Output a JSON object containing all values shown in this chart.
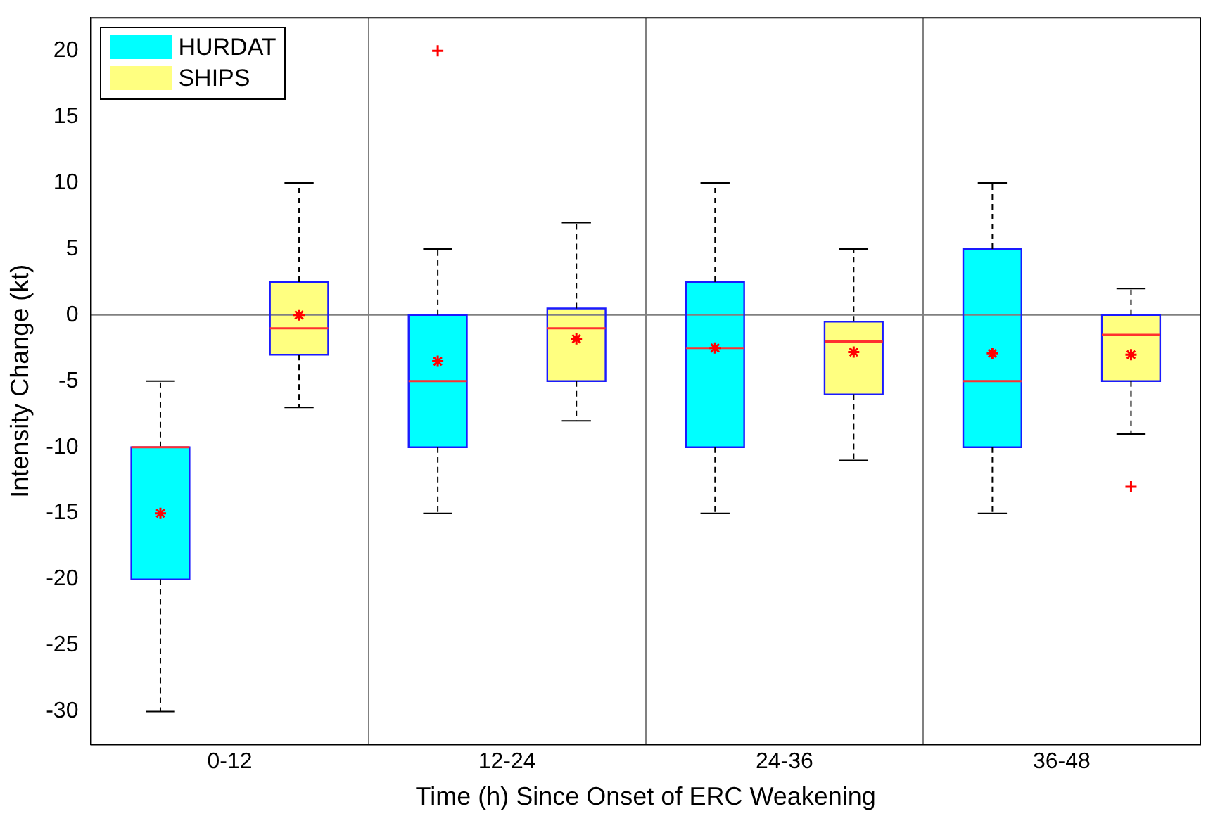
{
  "chart_data": {
    "type": "box",
    "xlabel": "Time (h) Since Onset of ERC Weakening",
    "ylabel": "Intensity Change (kt)",
    "categories": [
      "0-12",
      "12-24",
      "24-36",
      "36-48"
    ],
    "ylim": [
      -32.5,
      22.5
    ],
    "yticks": [
      -30,
      -25,
      -20,
      -15,
      -10,
      -5,
      0,
      5,
      10,
      15,
      20
    ],
    "grid": "x",
    "legend": "top left",
    "marker": "star",
    "ref_lines": [
      {
        "axis": "y",
        "value": 0,
        "color": "#808080"
      }
    ],
    "series": [
      {
        "name": "HURDAT",
        "color": "#00ffff",
        "boxes": [
          {
            "low": -30,
            "q1": -20,
            "median": -10,
            "q3": -10,
            "high": -5,
            "mean": -15
          },
          {
            "low": -15,
            "q1": -10,
            "median": -5,
            "q3": 0,
            "high": 5,
            "mean": -3.5,
            "outliers": [
              20
            ]
          },
          {
            "low": -15,
            "q1": -10,
            "median": -2.5,
            "q3": 2.5,
            "high": 10,
            "mean": -2.5
          },
          {
            "low": -15,
            "q1": -10,
            "median": -5,
            "q3": 5,
            "high": 10,
            "mean": -2.9
          }
        ]
      },
      {
        "name": "SHIPS",
        "color": "#ffff80",
        "boxes": [
          {
            "low": -7,
            "q1": -3,
            "median": -1,
            "q3": 2.5,
            "high": 10,
            "mean": 0
          },
          {
            "low": -8,
            "q1": -5,
            "median": -1,
            "q3": 0.5,
            "high": 7,
            "mean": -1.8
          },
          {
            "low": -11,
            "q1": -6,
            "median": -2,
            "q3": -0.5,
            "high": 5,
            "mean": -2.8
          },
          {
            "low": -9,
            "q1": -5,
            "median": -1.5,
            "q3": 0,
            "high": 2,
            "mean": -3,
            "outliers": [
              -13
            ]
          }
        ]
      }
    ]
  }
}
